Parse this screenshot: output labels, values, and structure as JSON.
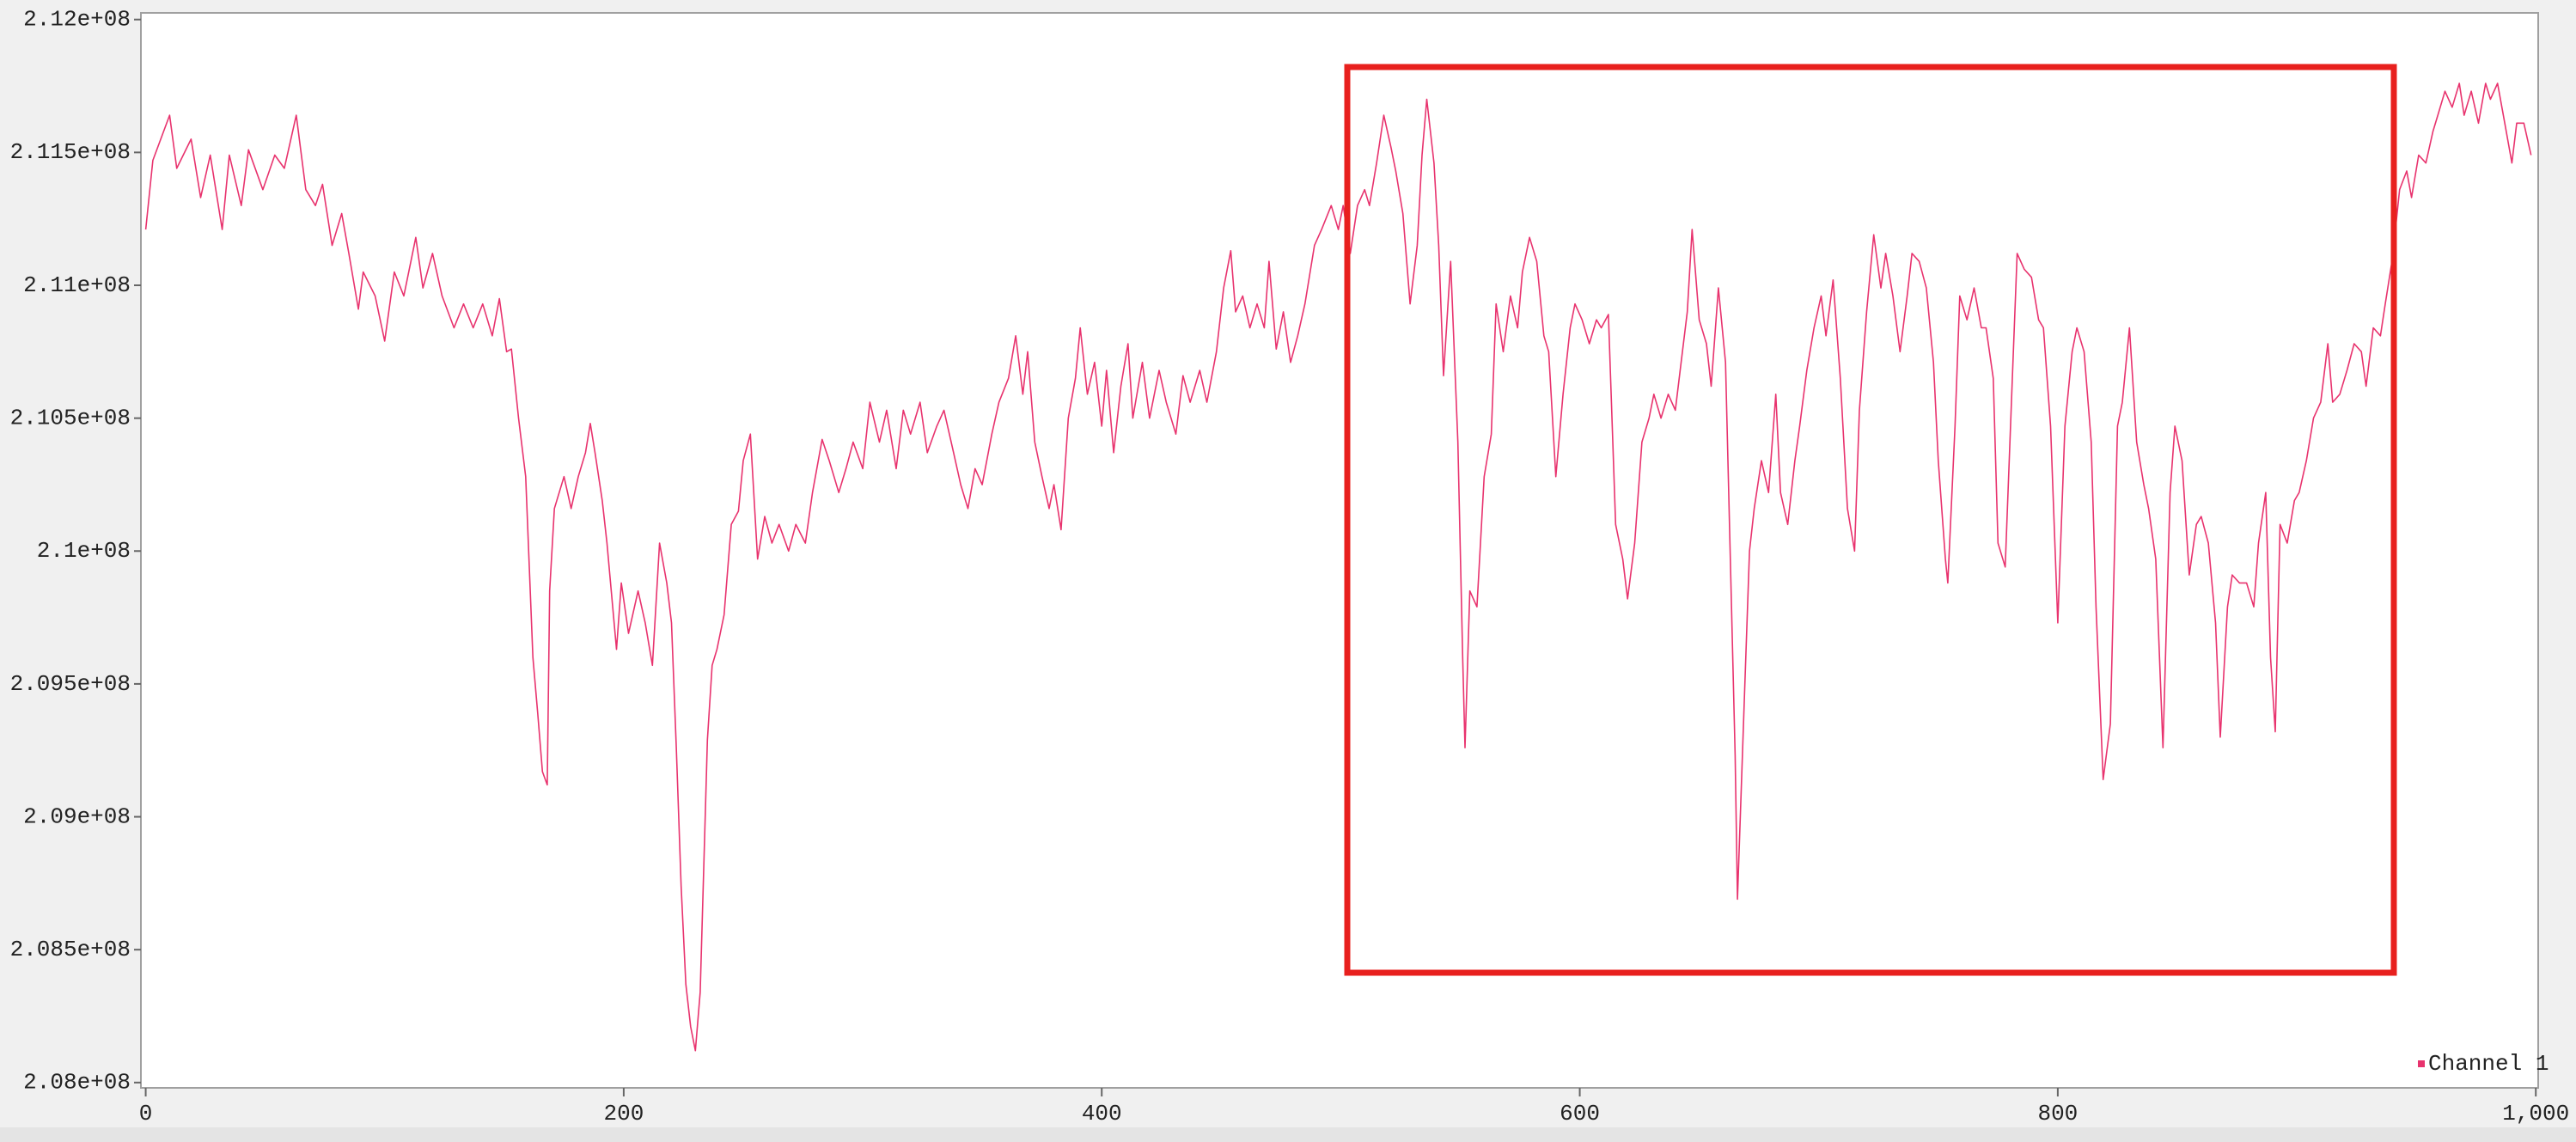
{
  "chart_data": {
    "type": "line",
    "x": [
      0,
      3,
      10,
      13,
      19,
      23,
      27,
      32,
      35,
      40,
      43,
      49,
      54,
      58,
      63,
      67,
      71,
      74,
      78,
      82,
      85,
      89,
      91,
      96,
      100,
      104,
      108,
      113,
      116,
      120,
      124,
      129,
      133,
      137,
      141,
      145,
      148,
      151,
      153,
      156,
      159,
      162,
      164,
      166,
      168,
      169,
      171,
      175,
      178,
      181,
      184,
      186,
      188,
      191,
      193,
      197,
      199,
      202,
      206,
      209,
      212,
      215,
      218,
      220,
      222,
      224,
      226,
      228,
      230,
      232,
      235,
      237,
      239,
      242,
      245,
      248,
      250,
      253,
      256,
      259,
      262,
      265,
      269,
      272,
      276,
      279,
      283,
      286,
      290,
      293,
      296,
      300,
      303,
      307,
      310,
      314,
      317,
      320,
      324,
      327,
      331,
      334,
      338,
      341,
      344,
      347,
      350,
      354,
      357,
      361,
      364,
      367,
      369,
      372,
      375,
      378,
      380,
      383,
      386,
      389,
      391,
      394,
      397,
      400,
      402,
      405,
      408,
      411,
      413,
      417,
      420,
      424,
      427,
      431,
      434,
      437,
      441,
      444,
      448,
      451,
      454,
      456,
      459,
      462,
      465,
      468,
      470,
      473,
      476,
      479,
      482,
      485,
      489,
      492,
      496,
      499,
      501,
      504,
      507,
      510,
      512,
      515,
      518,
      521,
      523,
      526,
      529,
      532,
      534,
      536,
      539,
      541,
      543,
      546,
      549,
      551,
      552,
      554,
      557,
      560,
      563,
      565,
      568,
      571,
      574,
      576,
      579,
      582,
      585,
      587,
      590,
      593,
      596,
      598,
      601,
      604,
      607,
      609,
      612,
      615,
      618,
      620,
      623,
      626,
      629,
      631,
      634,
      637,
      640,
      642,
      645,
      647,
      650,
      653,
      655,
      658,
      661,
      663,
      665,
      666,
      669,
      671,
      673,
      676,
      679,
      682,
      684,
      687,
      690,
      692,
      695,
      698,
      701,
      703,
      706,
      709,
      712,
      715,
      717,
      720,
      723,
      726,
      728,
      731,
      734,
      737,
      739,
      742,
      745,
      748,
      750,
      753,
      754,
      757,
      759,
      762,
      765,
      768,
      770,
      773,
      775,
      778,
      781,
      783,
      786,
      789,
      792,
      794,
      797,
      800,
      803,
      806,
      808,
      811,
      814,
      816,
      819,
      822,
      825,
      827,
      830,
      833,
      836,
      838,
      841,
      844,
      847,
      849,
      852,
      855,
      858,
      860,
      863,
      866,
      868,
      871,
      873,
      876,
      879,
      882,
      884,
      887,
      889,
      891,
      893,
      896,
      899,
      901,
      904,
      907,
      910,
      913,
      915,
      918,
      921,
      924,
      927,
      929,
      932,
      935,
      937,
      940,
      943,
      946,
      948,
      951,
      954,
      957,
      959,
      962,
      965,
      968,
      970,
      973,
      976,
      979,
      981,
      984,
      987,
      990,
      992,
      995,
      998
    ],
    "series": [
      {
        "name": "Channel 1",
        "color": "#e8336e",
        "values": [
          211210000.0,
          211470000.0,
          211640000.0,
          211440000.0,
          211550000.0,
          211330000.0,
          211490000.0,
          211210000.0,
          211490000.0,
          211300000.0,
          211510000.0,
          211360000.0,
          211490000.0,
          211440000.0,
          211640000.0,
          211360000.0,
          211300000.0,
          211380000.0,
          211150000.0,
          211270000.0,
          211120000.0,
          210910000.0,
          211050000.0,
          210960000.0,
          210790000.0,
          211050000.0,
          210960000.0,
          211180000.0,
          210990000.0,
          211120000.0,
          210960000.0,
          210840000.0,
          210930000.0,
          210840000.0,
          210930000.0,
          210810000.0,
          210950000.0,
          210750000.0,
          210760000.0,
          210500000.0,
          210280000.0,
          209600000.0,
          209390000.0,
          209170000.0,
          209120000.0,
          209850000.0,
          210160000.0,
          210280000.0,
          210160000.0,
          210280000.0,
          210370000.0,
          210480000.0,
          210370000.0,
          210190000.0,
          210030000.0,
          209630000.0,
          209880000.0,
          209690000.0,
          209850000.0,
          209730000.0,
          209570000.0,
          210030000.0,
          209880000.0,
          209730000.0,
          209260000.0,
          208740000.0,
          208370000.0,
          208210000.0,
          208120000.0,
          208340000.0,
          209290000.0,
          209570000.0,
          209630000.0,
          209760000.0,
          210100000.0,
          210150000.0,
          210340000.0,
          210440000.0,
          209970000.0,
          210130000.0,
          210030000.0,
          210100000.0,
          210000000.0,
          210100000.0,
          210030000.0,
          210220000.0,
          210420000.0,
          210340000.0,
          210220000.0,
          210310000.0,
          210410000.0,
          210310000.0,
          210560000.0,
          210410000.0,
          210530000.0,
          210310000.0,
          210530000.0,
          210440000.0,
          210560000.0,
          210370000.0,
          210470000.0,
          210530000.0,
          210370000.0,
          210250000.0,
          210160000.0,
          210310000.0,
          210250000.0,
          210440000.0,
          210560000.0,
          210650000.0,
          210810000.0,
          210590000.0,
          210750000.0,
          210410000.0,
          210280000.0,
          210160000.0,
          210250000.0,
          210080000.0,
          210500000.0,
          210650000.0,
          210840000.0,
          210590000.0,
          210710000.0,
          210470000.0,
          210680000.0,
          210370000.0,
          210620000.0,
          210780000.0,
          210500000.0,
          210710000.0,
          210500000.0,
          210680000.0,
          210560000.0,
          210440000.0,
          210660000.0,
          210560000.0,
          210680000.0,
          210560000.0,
          210750000.0,
          210990000.0,
          211130000.0,
          210900000.0,
          210960000.0,
          210840000.0,
          210930000.0,
          210840000.0,
          211090000.0,
          210760000.0,
          210900000.0,
          210710000.0,
          210810000.0,
          210930000.0,
          211150000.0,
          211210000.0,
          211300000.0,
          211210000.0,
          211300000.0,
          211120000.0,
          211300000.0,
          211360000.0,
          211300000.0,
          211460000.0,
          211640000.0,
          211520000.0,
          211430000.0,
          211270000.0,
          210930000.0,
          211150000.0,
          211490000.0,
          211700000.0,
          211460000.0,
          211150000.0,
          210660000.0,
          211090000.0,
          210410000.0,
          209600000.0,
          209260000.0,
          209850000.0,
          209790000.0,
          210280000.0,
          210440000.0,
          210930000.0,
          210750000.0,
          210960000.0,
          210840000.0,
          211050000.0,
          211180000.0,
          211090000.0,
          210810000.0,
          210750000.0,
          210280000.0,
          210590000.0,
          210840000.0,
          210930000.0,
          210870000.0,
          210780000.0,
          210870000.0,
          210840000.0,
          210890000.0,
          210100000.0,
          209970000.0,
          209820000.0,
          210030000.0,
          210410000.0,
          210500000.0,
          210590000.0,
          210500000.0,
          210590000.0,
          210530000.0,
          210680000.0,
          210900000.0,
          211210000.0,
          210870000.0,
          210780000.0,
          210620000.0,
          210990000.0,
          210710000.0,
          209970000.0,
          209230000.0,
          208690000.0,
          209480000.0,
          210000000.0,
          210160000.0,
          210340000.0,
          210220000.0,
          210590000.0,
          210220000.0,
          210100000.0,
          210340000.0,
          210470000.0,
          210680000.0,
          210840000.0,
          210960000.0,
          210810000.0,
          211020000.0,
          210650000.0,
          210160000.0,
          210000000.0,
          210530000.0,
          210900000.0,
          211190000.0,
          210990000.0,
          211120000.0,
          210960000.0,
          210750000.0,
          210960000.0,
          211120000.0,
          211090000.0,
          210990000.0,
          210710000.0,
          210340000.0,
          209970000.0,
          209880000.0,
          210470000.0,
          210960000.0,
          210870000.0,
          210990000.0,
          210840000.0,
          210840000.0,
          210650000.0,
          210030000.0,
          209940000.0,
          210650000.0,
          211120000.0,
          211060000.0,
          211030000.0,
          210870000.0,
          210840000.0,
          210470000.0,
          209730000.0,
          210470000.0,
          210750000.0,
          210840000.0,
          210750000.0,
          210410000.0,
          209790000.0,
          209140000.0,
          209350000.0,
          210470000.0,
          210560000.0,
          210840000.0,
          210410000.0,
          210250000.0,
          210160000.0,
          209970000.0,
          209260000.0,
          210220000.0,
          210470000.0,
          210340000.0,
          209910000.0,
          210100000.0,
          210130000.0,
          210030000.0,
          209730000.0,
          209300000.0,
          209790000.0,
          209910000.0,
          209880000.0,
          209880000.0,
          209790000.0,
          210030000.0,
          210220000.0,
          209600000.0,
          209320000.0,
          210100000.0,
          210030000.0,
          210190000.0,
          210220000.0,
          210340000.0,
          210500000.0,
          210560000.0,
          210780000.0,
          210560000.0,
          210590000.0,
          210680000.0,
          210780000.0,
          210750000.0,
          210620000.0,
          210840000.0,
          210810000.0,
          210930000.0,
          211100000.0,
          211360000.0,
          211430000.0,
          211330000.0,
          211490000.0,
          211460000.0,
          211580000.0,
          211640000.0,
          211730000.0,
          211670000.0,
          211760000.0,
          211640000.0,
          211730000.0,
          211610000.0,
          211760000.0,
          211700000.0,
          211760000.0,
          211610000.0,
          211460000.0,
          211610000.0,
          211610000.0,
          211490000.0
        ]
      }
    ],
    "xlim": [
      -2,
      1001
    ],
    "xticks": [
      0,
      200,
      400,
      600,
      800,
      {
        "value": 1000,
        "label": "1,000"
      }
    ],
    "ylim": [
      207980000.0,
      212025000.0
    ],
    "yticks": [
      {
        "value": 208000000.0,
        "label": "2.08e+08"
      },
      {
        "value": 208500000.0,
        "label": "2.085e+08"
      },
      {
        "value": 209000000.0,
        "label": "2.09e+08"
      },
      {
        "value": 209500000.0,
        "label": "2.095e+08"
      },
      {
        "value": 210000000.0,
        "label": "2.1e+08"
      },
      {
        "value": 210500000.0,
        "label": "2.105e+08"
      },
      {
        "value": 211000000.0,
        "label": "2.11e+08"
      },
      {
        "value": 211500000.0,
        "label": "2.115e+08"
      },
      {
        "value": 212000000.0,
        "label": "2.12e+08"
      }
    ],
    "grid": false,
    "legend": "lower right"
  }
}
